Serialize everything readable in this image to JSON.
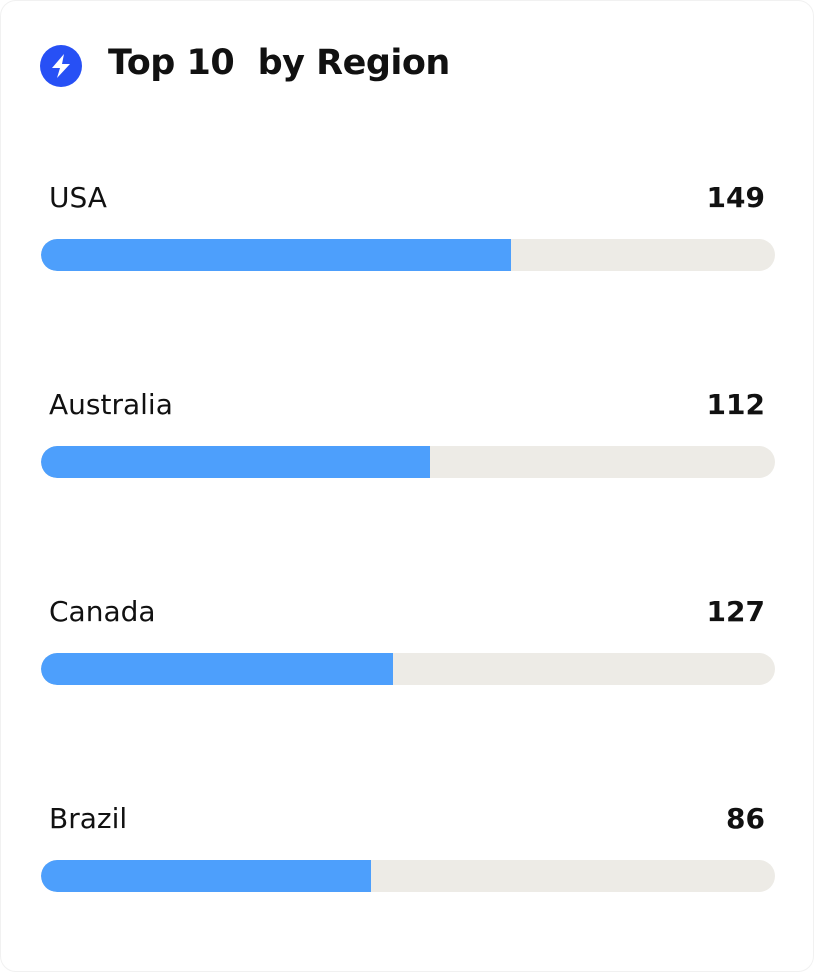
{
  "header": {
    "title": "Top 10  by Region"
  },
  "progress_range": [
    0,
    100
  ],
  "items": [
    {
      "label": "USA",
      "value": 149,
      "progress": 64
    },
    {
      "label": "Australia",
      "value": 112,
      "progress": 53
    },
    {
      "label": "Canada",
      "value": 127,
      "progress": 48
    },
    {
      "label": "Brazil",
      "value": 86,
      "progress": 45
    }
  ]
}
